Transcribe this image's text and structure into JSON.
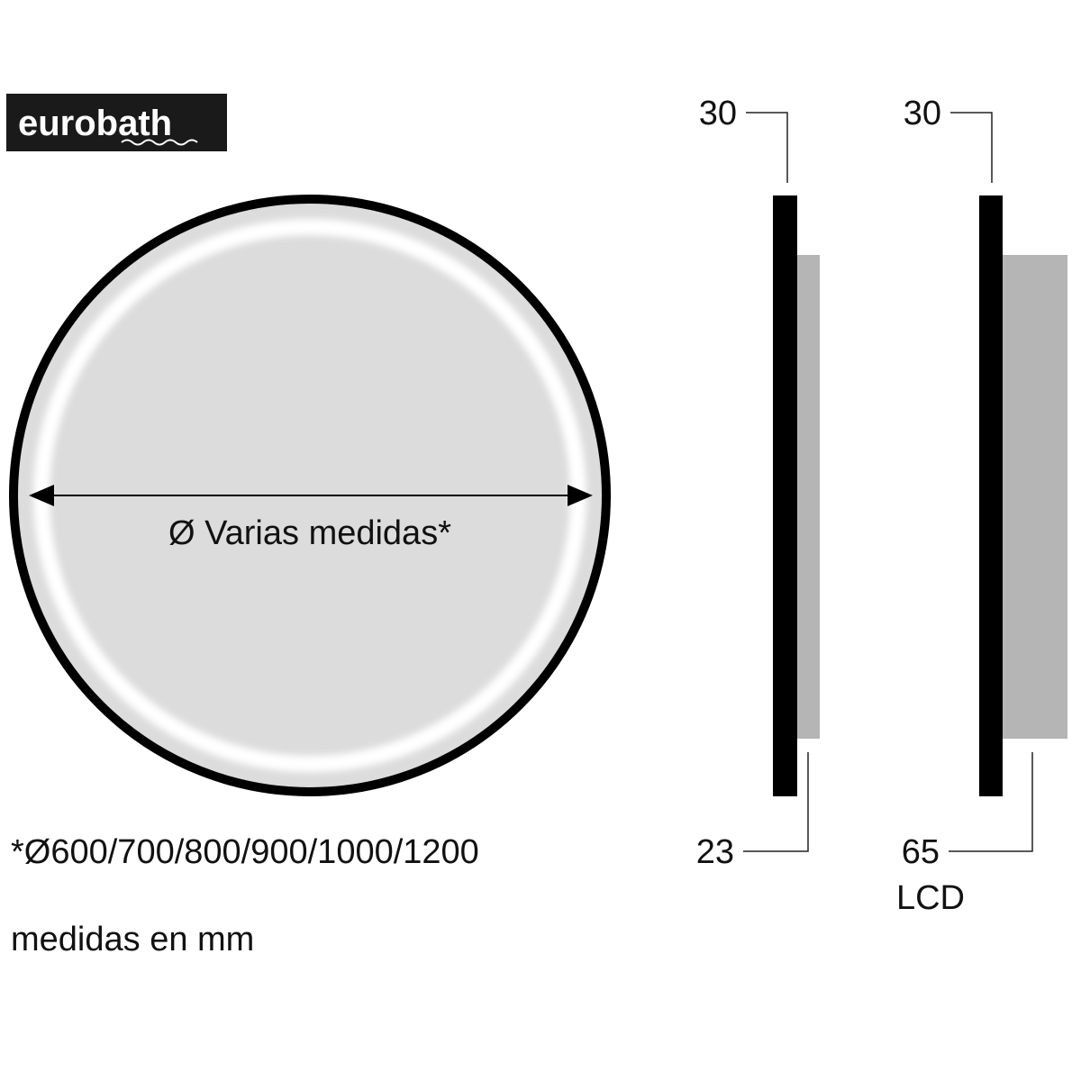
{
  "logo": {
    "text": "eurobath",
    "background": "#1a1a1a"
  },
  "mirror": {
    "diameter_label": "Ø Varias medidas*",
    "frame_color": "#000000",
    "glass_color": "#dcdcdc"
  },
  "side_views": [
    {
      "top_dimension": "30",
      "bottom_dimension": "23",
      "bottom_note": ""
    },
    {
      "top_dimension": "30",
      "bottom_dimension": "65",
      "bottom_note": "LCD"
    }
  ],
  "footnote_sizes": "*Ø600/700/800/900/1000/1200",
  "units_note": "medidas en mm"
}
